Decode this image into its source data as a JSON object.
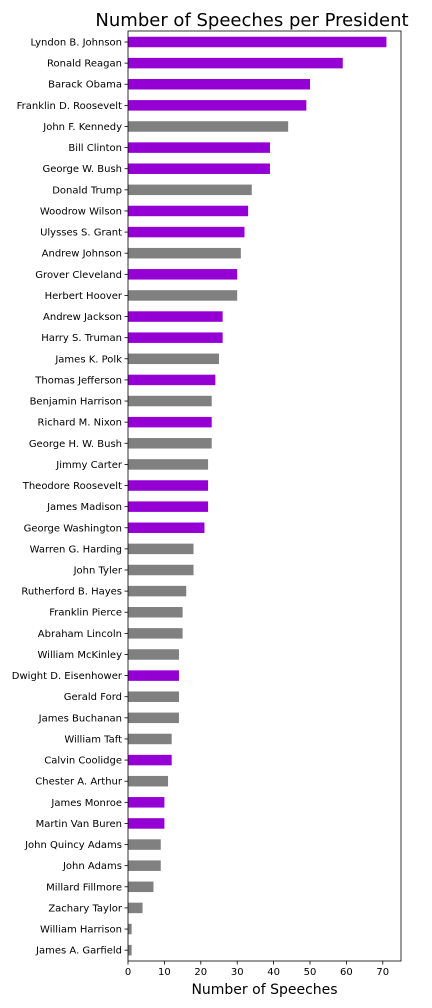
{
  "chart_data": {
    "type": "bar",
    "orientation": "horizontal",
    "title": "Number of Speeches per President",
    "xlabel": "Number of Speeches",
    "ylabel": "",
    "xlim": [
      0,
      75
    ],
    "xticks": [
      "0",
      "10",
      "20",
      "30",
      "40",
      "50",
      "60",
      "70"
    ],
    "grid": false,
    "legend": "none",
    "colors": {
      "highlight": "#9400D3",
      "default": "#808080"
    },
    "categories": [
      "Lyndon B. Johnson",
      "Ronald Reagan",
      "Barack Obama",
      "Franklin D. Roosevelt",
      "John F. Kennedy",
      "Bill Clinton",
      "George W. Bush",
      "Donald Trump",
      "Woodrow Wilson",
      "Ulysses S. Grant",
      "Andrew Johnson",
      "Grover Cleveland",
      "Herbert Hoover",
      "Andrew Jackson",
      "Harry S. Truman",
      "James K. Polk",
      "Thomas Jefferson",
      "Benjamin Harrison",
      "Richard M. Nixon",
      "George H. W. Bush",
      "Jimmy Carter",
      "Theodore Roosevelt",
      "James Madison",
      "George Washington",
      "Warren G. Harding",
      "John Tyler",
      "Rutherford B. Hayes",
      "Franklin Pierce",
      "Abraham Lincoln",
      "William McKinley",
      "Dwight D. Eisenhower",
      "Gerald Ford",
      "James Buchanan",
      "William Taft",
      "Calvin Coolidge",
      "Chester A. Arthur",
      "James Monroe",
      "Martin Van Buren",
      "John Quincy Adams",
      "John Adams",
      "Millard Fillmore",
      "Zachary Taylor",
      "William Harrison",
      "James A. Garfield"
    ],
    "values": [
      71,
      59,
      50,
      49,
      44,
      39,
      39,
      34,
      33,
      32,
      31,
      30,
      30,
      26,
      26,
      25,
      24,
      23,
      23,
      23,
      22,
      22,
      22,
      21,
      18,
      18,
      16,
      15,
      15,
      14,
      14,
      14,
      14,
      12,
      12,
      11,
      10,
      10,
      9,
      9,
      7,
      4,
      1,
      1
    ],
    "highlighted": [
      true,
      true,
      true,
      true,
      false,
      true,
      true,
      false,
      true,
      true,
      false,
      true,
      false,
      true,
      true,
      false,
      true,
      false,
      true,
      false,
      false,
      true,
      true,
      true,
      false,
      false,
      false,
      false,
      false,
      false,
      true,
      false,
      false,
      false,
      true,
      false,
      true,
      true,
      false,
      false,
      false,
      false,
      false,
      false
    ]
  }
}
